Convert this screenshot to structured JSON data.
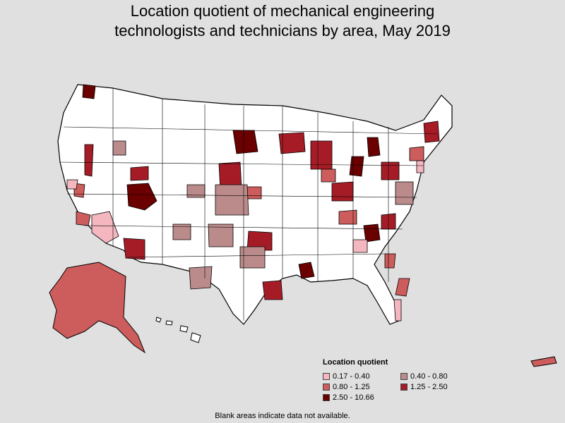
{
  "title": {
    "line1": "Location quotient of mechanical engineering",
    "line2": "technologists and technicians by area, May 2019"
  },
  "legend": {
    "title": "Location quotient",
    "items": [
      {
        "label": "0.17 - 0.40",
        "color": "#f4b6bf"
      },
      {
        "label": "0.40 - 0.80",
        "color": "#bb8b8b"
      },
      {
        "label": "0.80 - 1.25",
        "color": "#cd5c5c"
      },
      {
        "label": "1.25 - 2.50",
        "color": "#a51c27"
      },
      {
        "label": "2.50 - 10.66",
        "color": "#6b0000"
      }
    ]
  },
  "footnote": "Blank areas indicate data not available.",
  "colors": {
    "background": "#e0e0e0",
    "no_data": "#ffffff",
    "border": "#000000"
  }
}
